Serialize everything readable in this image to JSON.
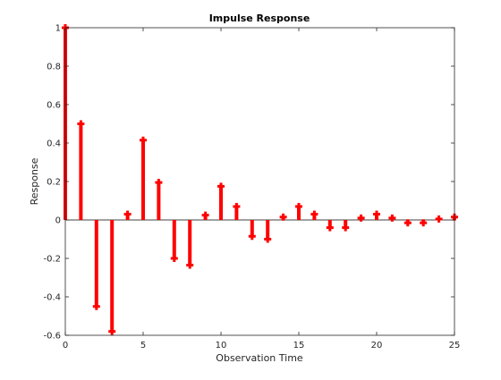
{
  "chart_data": {
    "type": "stem",
    "title": "Impulse Response",
    "xlabel": "Observation Time",
    "ylabel": "Response",
    "xlim": [
      0,
      25
    ],
    "ylim": [
      -0.6,
      1.0
    ],
    "xticks": [
      0,
      5,
      10,
      15,
      20,
      25
    ],
    "yticks": [
      -0.6,
      -0.4,
      -0.2,
      0,
      0.2,
      0.4,
      0.6,
      0.8,
      1
    ],
    "xtick_labels": [
      "0",
      "5",
      "10",
      "15",
      "20",
      "25"
    ],
    "ytick_labels": [
      "-0.6",
      "-0.4",
      "-0.2",
      "0",
      "0.2",
      "0.4",
      "0.6",
      "0.8",
      "1"
    ],
    "grid": false,
    "series": [
      {
        "color": "#ff0000",
        "marker": "plus",
        "x": [
          0,
          1,
          2,
          3,
          4,
          5,
          6,
          7,
          8,
          9,
          10,
          11,
          12,
          13,
          14,
          15,
          16,
          17,
          18,
          19,
          20,
          21,
          22,
          23,
          24,
          25
        ],
        "values": [
          1.0,
          0.5,
          -0.45,
          -0.58,
          0.03,
          0.415,
          0.195,
          -0.2,
          -0.235,
          0.025,
          0.175,
          0.07,
          -0.085,
          -0.1,
          0.015,
          0.07,
          0.03,
          -0.04,
          -0.04,
          0.01,
          0.03,
          0.01,
          -0.015,
          -0.015,
          0.005,
          0.015
        ]
      }
    ]
  }
}
